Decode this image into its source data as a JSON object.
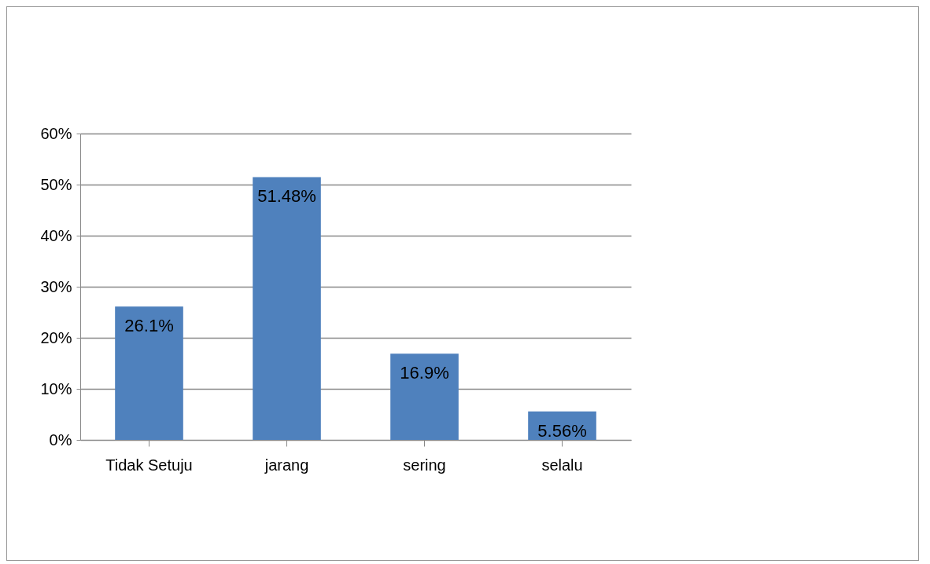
{
  "chart_data": {
    "type": "bar",
    "categories": [
      "Tidak Setuju",
      "jarang",
      "sering",
      "selalu"
    ],
    "values": [
      26.1,
      51.48,
      16.9,
      5.56
    ],
    "value_labels": [
      "26.1%",
      "51.48%",
      "16.9%",
      "5.56%"
    ],
    "color": "#4f81bd",
    "ylim": [
      0,
      60
    ],
    "yticks": [
      {
        "value": 0,
        "label": "0%"
      },
      {
        "value": 10,
        "label": "10%"
      },
      {
        "value": 20,
        "label": "20%"
      },
      {
        "value": 30,
        "label": "30%"
      },
      {
        "value": 40,
        "label": "40%"
      },
      {
        "value": 50,
        "label": "50%"
      },
      {
        "value": 60,
        "label": "60%"
      }
    ],
    "grid": "y"
  }
}
